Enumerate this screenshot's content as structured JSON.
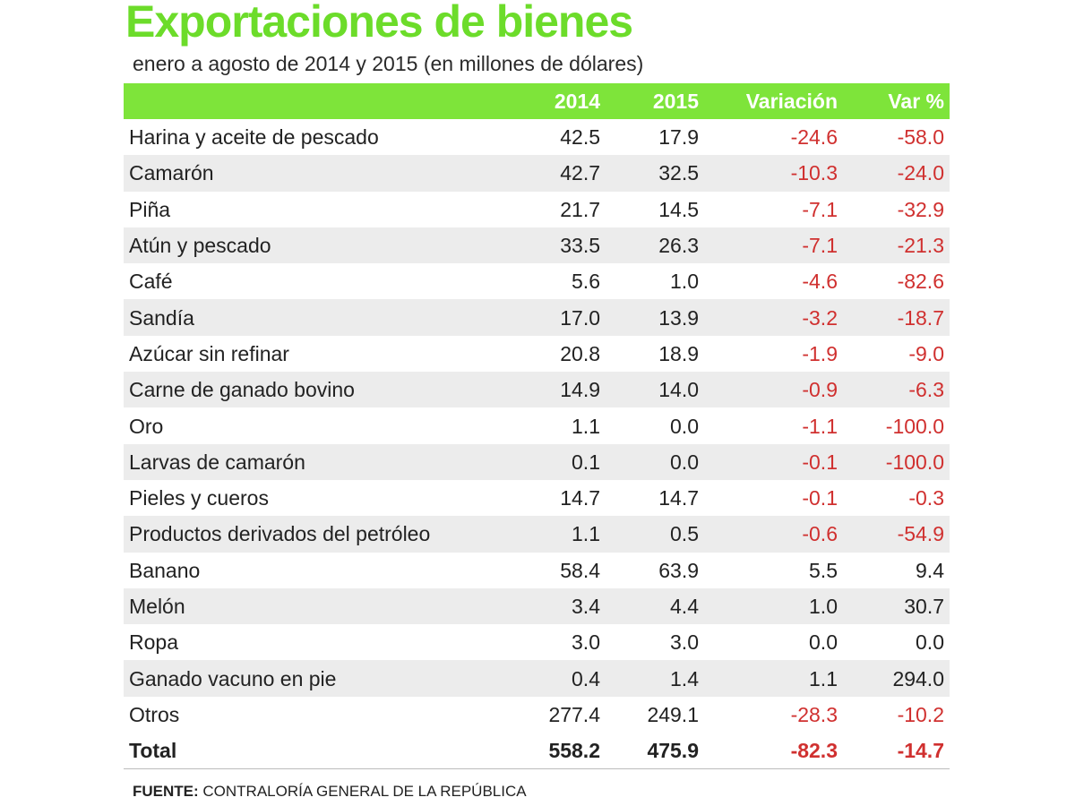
{
  "title": "Exportaciones de bienes",
  "subtitle": "enero a agosto de 2014 y 2015 (en millones de dólares)",
  "colors": {
    "accent": "#7ee43a",
    "title": "#6cdc2a",
    "negative": "#d0302f",
    "stripe": "#ececec"
  },
  "headers": {
    "col2014": "2014",
    "col2015": "2015",
    "variacion": "Variación",
    "var_pct": "Var %"
  },
  "rows": [
    {
      "name": "Harina y aceite de pescado",
      "y2014": "42.5",
      "y2015": "17.9",
      "var": "-24.6",
      "pct": "-58.0"
    },
    {
      "name": "Camarón",
      "y2014": "42.7",
      "y2015": "32.5",
      "var": "-10.3",
      "pct": "-24.0"
    },
    {
      "name": "Piña",
      "y2014": "21.7",
      "y2015": "14.5",
      "var": "-7.1",
      "pct": "-32.9"
    },
    {
      "name": "Atún y pescado",
      "y2014": "33.5",
      "y2015": "26.3",
      "var": "-7.1",
      "pct": "-21.3"
    },
    {
      "name": "Café",
      "y2014": "5.6",
      "y2015": "1.0",
      "var": "-4.6",
      "pct": "-82.6"
    },
    {
      "name": "Sandía",
      "y2014": "17.0",
      "y2015": "13.9",
      "var": "-3.2",
      "pct": "-18.7"
    },
    {
      "name": "Azúcar sin refinar",
      "y2014": "20.8",
      "y2015": "18.9",
      "var": "-1.9",
      "pct": "-9.0"
    },
    {
      "name": "Carne de ganado bovino",
      "y2014": "14.9",
      "y2015": "14.0",
      "var": "-0.9",
      "pct": "-6.3"
    },
    {
      "name": "Oro",
      "y2014": "1.1",
      "y2015": "0.0",
      "var": "-1.1",
      "pct": "-100.0"
    },
    {
      "name": "Larvas de camarón",
      "y2014": "0.1",
      "y2015": "0.0",
      "var": "-0.1",
      "pct": "-100.0"
    },
    {
      "name": "Pieles y cueros",
      "y2014": "14.7",
      "y2015": "14.7",
      "var": "-0.1",
      "pct": "-0.3"
    },
    {
      "name": "Productos derivados del petróleo",
      "y2014": "1.1",
      "y2015": "0.5",
      "var": "-0.6",
      "pct": "-54.9"
    },
    {
      "name": "Banano",
      "y2014": "58.4",
      "y2015": "63.9",
      "var": "5.5",
      "pct": "9.4"
    },
    {
      "name": "Melón",
      "y2014": "3.4",
      "y2015": "4.4",
      "var": "1.0",
      "pct": "30.7"
    },
    {
      "name": "Ropa",
      "y2014": "3.0",
      "y2015": "3.0",
      "var": "0.0",
      "pct": "0.0"
    },
    {
      "name": "Ganado vacuno en pie",
      "y2014": "0.4",
      "y2015": "1.4",
      "var": "1.1",
      "pct": "294.0"
    },
    {
      "name": "Otros",
      "y2014": "277.4",
      "y2015": "249.1",
      "var": "-28.3",
      "pct": "-10.2"
    }
  ],
  "total": {
    "name": "Total",
    "y2014": "558.2",
    "y2015": "475.9",
    "var": "-82.3",
    "pct": "-14.7"
  },
  "source": {
    "label": "FUENTE:",
    "text": " CONTRALORÍA GENERAL DE LA REPÚBLICA"
  }
}
